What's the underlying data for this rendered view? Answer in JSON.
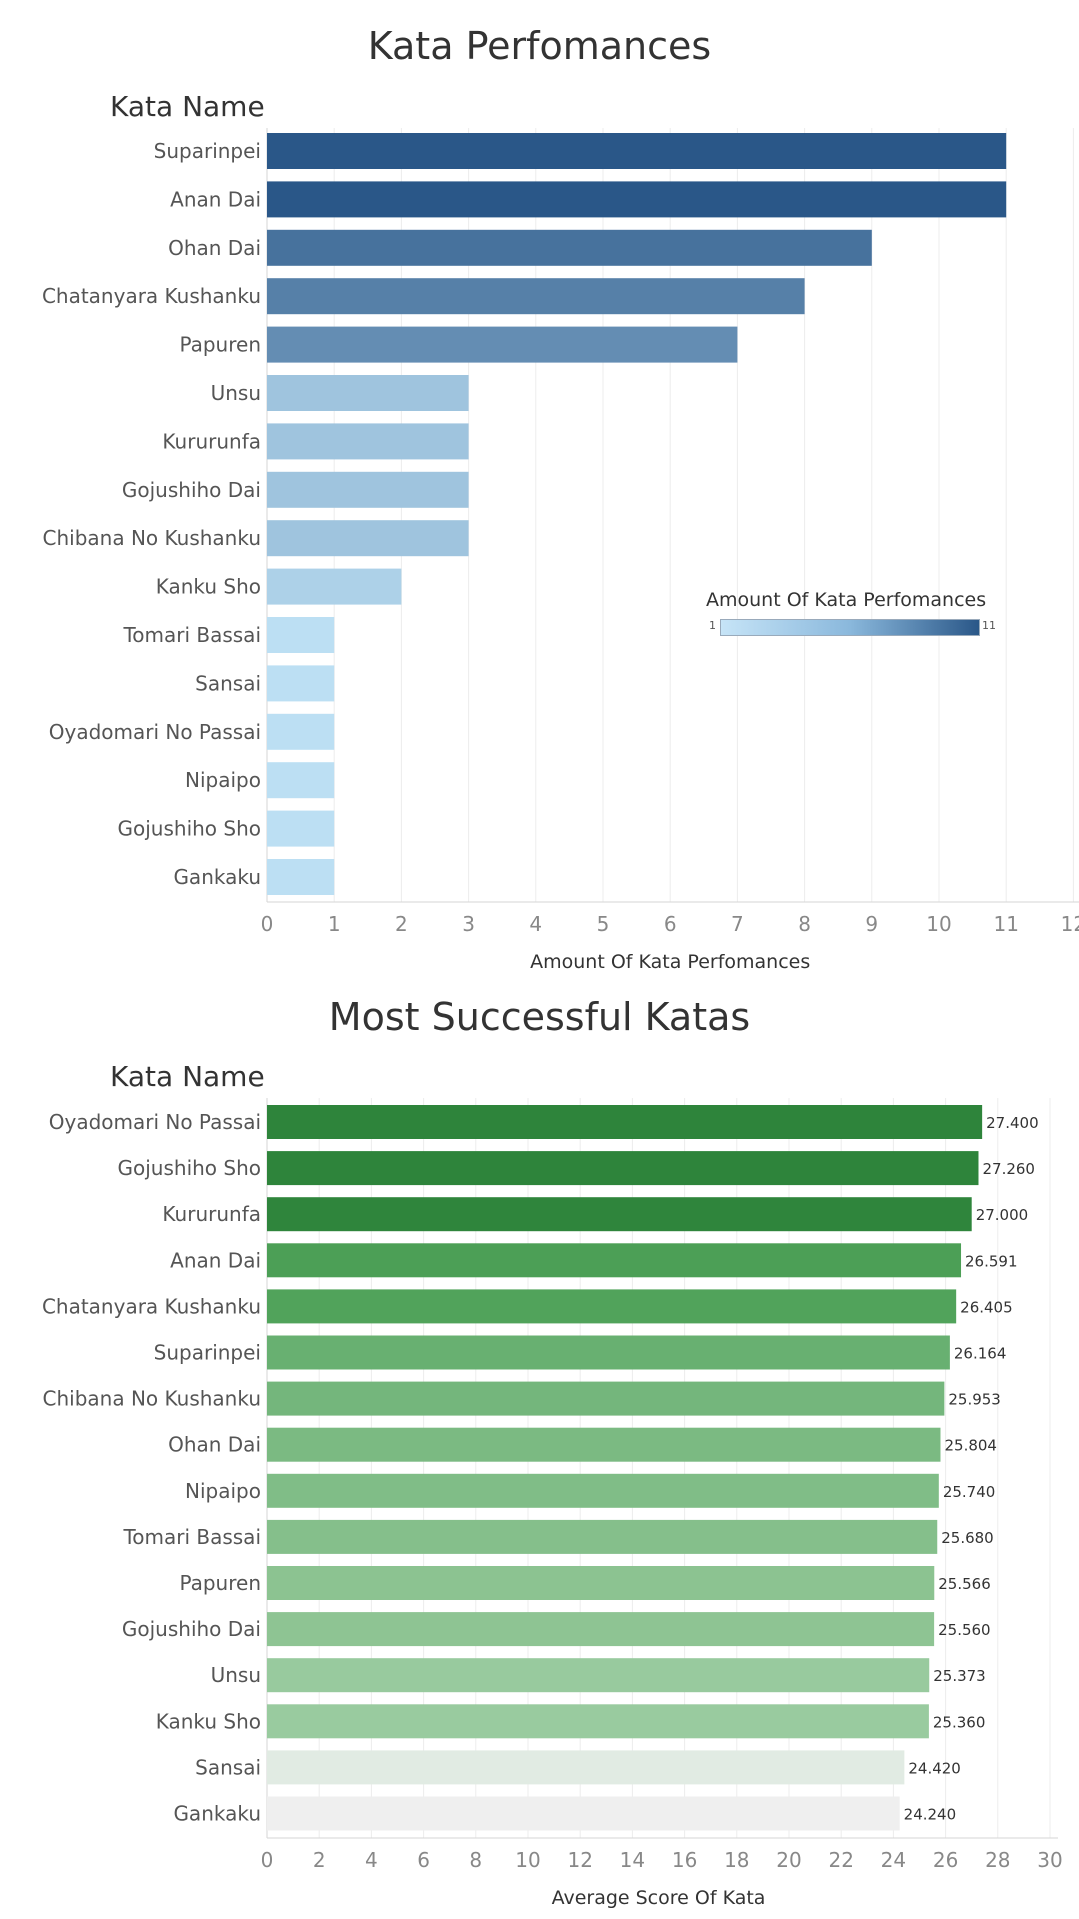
{
  "chart_data": [
    {
      "type": "bar",
      "orientation": "horizontal",
      "title": "Kata Perfomances",
      "row_header": "Kata Name",
      "xlabel": "Amount Of Kata Perfomances",
      "xlim": [
        0,
        12
      ],
      "xticks": [
        0,
        1,
        2,
        3,
        4,
        5,
        6,
        7,
        8,
        9,
        10,
        11,
        12
      ],
      "categories": [
        "Suparinpei",
        "Anan Dai",
        "Ohan Dai",
        "Chatanyara Kushanku",
        "Papuren",
        "Unsu",
        "Kururunfa",
        "Gojushiho Dai",
        "Chibana No Kushanku",
        "Kanku Sho",
        "Tomari Bassai",
        "Sansai",
        "Oyadomari No Passai",
        "Nipaipo",
        "Gojushiho Sho",
        "Gankaku"
      ],
      "values": [
        11,
        11,
        9,
        8,
        7,
        3,
        3,
        3,
        3,
        2,
        1,
        1,
        1,
        1,
        1,
        1
      ],
      "grid": "vertical",
      "color_scale": {
        "low": "#bcdff3",
        "high": "#2a5788"
      },
      "legend": {
        "title": "Amount Of Kata Perfomances",
        "min_label": "1",
        "max_label": "11",
        "placement": "right"
      }
    },
    {
      "type": "bar",
      "orientation": "horizontal",
      "title": "Most Successful Katas",
      "row_header": "Kata Name",
      "xlabel": "Average Score Of Kata",
      "xlim": [
        0,
        30
      ],
      "xticks": [
        0,
        2,
        4,
        6,
        8,
        10,
        12,
        14,
        16,
        18,
        20,
        22,
        24,
        26,
        28,
        30
      ],
      "categories": [
        "Oyadomari No Passai",
        "Gojushiho Sho",
        "Kururunfa",
        "Anan Dai",
        "Chatanyara Kushanku",
        "Suparinpei",
        "Chibana No Kushanku",
        "Ohan Dai",
        "Nipaipo",
        "Tomari Bassai",
        "Papuren",
        "Gojushiho Dai",
        "Unsu",
        "Kanku Sho",
        "Sansai",
        "Gankaku"
      ],
      "values": [
        27.4,
        27.26,
        27.0,
        26.591,
        26.405,
        26.164,
        25.953,
        25.804,
        25.74,
        25.68,
        25.566,
        25.56,
        25.373,
        25.36,
        24.42,
        24.24
      ],
      "value_labels": [
        "27.400",
        "27.260",
        "27.000",
        "26.591",
        "26.405",
        "26.164",
        "25.953",
        "25.804",
        "25.740",
        "25.680",
        "25.566",
        "25.560",
        "25.373",
        "25.360",
        "24.420",
        "24.240"
      ],
      "grid": "vertical",
      "colors": [
        "#2e843b",
        "#2e843b",
        "#2f853c",
        "#4c9f56",
        "#51a35b",
        "#68b071",
        "#74b67c",
        "#7bba82",
        "#80bd87",
        "#85bf8b",
        "#8cc391",
        "#8ec493",
        "#98ca9e",
        "#99cb9f",
        "#e1ebe3",
        "#efefef"
      ]
    }
  ]
}
